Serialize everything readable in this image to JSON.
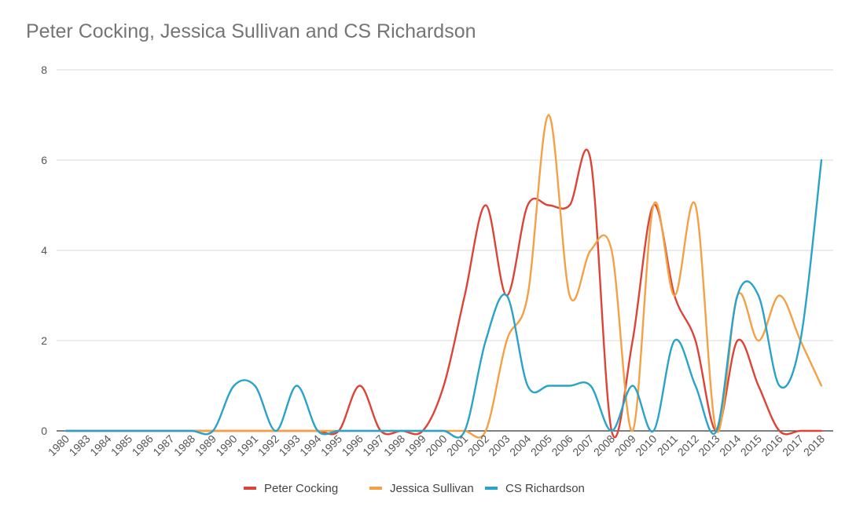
{
  "chart_data": {
    "type": "line",
    "title": "Peter Cocking, Jessica Sullivan and CS Richardson",
    "xlabel": "",
    "ylabel": "",
    "ylim": [
      0,
      8
    ],
    "yticks": [
      "0",
      "2",
      "4",
      "6",
      "8"
    ],
    "grid": true,
    "legend_position": "bottom",
    "categories": [
      "1980",
      "1983",
      "1984",
      "1985",
      "1986",
      "1987",
      "1988",
      "1989",
      "1990",
      "1991",
      "1992",
      "1993",
      "1994",
      "1995",
      "1996",
      "1997",
      "1998",
      "1999",
      "2000",
      "2001",
      "2002",
      "2003",
      "2004",
      "2005",
      "2006",
      "2007",
      "2008",
      "2009",
      "2010",
      "2011",
      "2012",
      "2013",
      "2014",
      "2015",
      "2016",
      "2017",
      "2018"
    ],
    "series": [
      {
        "name": "Peter Cocking",
        "color": "#db4437",
        "values": [
          0,
          0,
          0,
          0,
          0,
          0,
          0,
          0,
          0,
          0,
          0,
          0,
          0,
          0,
          1,
          0,
          0,
          0,
          1,
          3,
          5,
          3,
          5,
          5,
          5,
          6,
          0,
          2,
          5,
          3,
          2,
          0,
          2,
          1,
          0,
          0,
          0
        ]
      },
      {
        "name": "Jessica Sullivan",
        "color": "#f4a044",
        "values": [
          0,
          0,
          0,
          0,
          0,
          0,
          0,
          0,
          0,
          0,
          0,
          0,
          0,
          0,
          0,
          0,
          0,
          0,
          0,
          0,
          0,
          2,
          3,
          7,
          3,
          4,
          4,
          0,
          5,
          3,
          5,
          0,
          3,
          2,
          3,
          2,
          1
        ]
      },
      {
        "name": "CS Richardson",
        "color": "#2aa3c8",
        "values": [
          0,
          0,
          0,
          0,
          0,
          0,
          0,
          0,
          1,
          1,
          0,
          1,
          0,
          0,
          0,
          0,
          0,
          0,
          0,
          0,
          2,
          3,
          1,
          1,
          1,
          1,
          0,
          1,
          0,
          2,
          1,
          0,
          3,
          3,
          1,
          2,
          6
        ]
      }
    ]
  }
}
